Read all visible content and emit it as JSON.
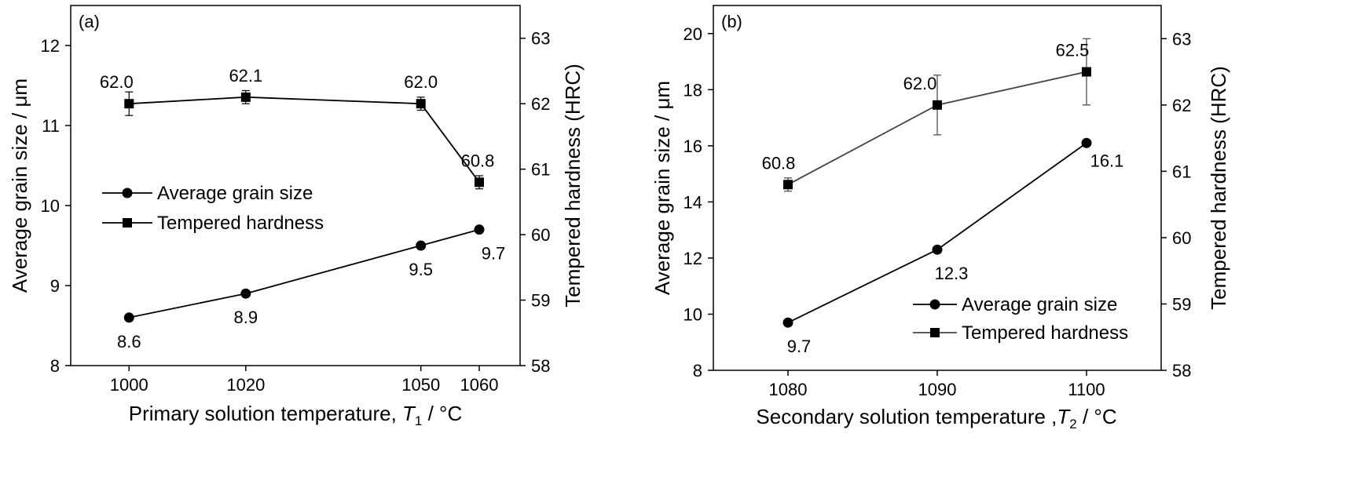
{
  "chart_data": [
    {
      "type": "line",
      "panel_label": "(a)",
      "xlabel_pre": "Primary solution temperature, ",
      "xlabel_var": "T",
      "xlabel_sub": "1",
      "xlabel_post": " / °C",
      "ylabel_left": "Average grain size / μm",
      "ylabel_right": "Tempered hardness (HRC)",
      "xlim": [
        990,
        1067
      ],
      "ylim_left": [
        8,
        12.5
      ],
      "ylim_right": [
        58,
        63.5
      ],
      "x_ticks": [
        1000,
        1020,
        1050,
        1060
      ],
      "x_tick_labels": [
        "1000",
        "1020",
        "1050",
        "1060"
      ],
      "y_left_ticks": [
        8,
        9,
        10,
        11,
        12
      ],
      "y_left_tick_labels": [
        "8",
        "9",
        "10",
        "11",
        "12"
      ],
      "y_right_ticks": [
        58,
        59,
        60,
        61,
        62,
        63
      ],
      "y_right_tick_labels": [
        "58",
        "59",
        "60",
        "61",
        "62",
        "63"
      ],
      "legend_position": "middle-left",
      "series": [
        {
          "name": "Average grain size",
          "axis": "left",
          "marker": "circle",
          "color": "#000000",
          "x": [
            1000,
            1020,
            1050,
            1060
          ],
          "values": [
            8.6,
            8.9,
            9.5,
            9.7
          ],
          "labels": [
            "8.6",
            "8.9",
            "9.5",
            "9.7"
          ]
        },
        {
          "name": "Tempered hardness",
          "axis": "right",
          "marker": "square",
          "color": "#000000",
          "x": [
            1000,
            1020,
            1050,
            1060
          ],
          "values": [
            62.0,
            62.1,
            62.0,
            60.8
          ],
          "errors": [
            0.18,
            0.1,
            0.1,
            0.1
          ],
          "labels": [
            "62.0",
            "62.1",
            "62.0",
            "60.8"
          ]
        }
      ]
    },
    {
      "type": "line",
      "panel_label": "(b)",
      "xlabel_pre": "Secondary solution temperature ,",
      "xlabel_var": "T",
      "xlabel_sub": "2",
      "xlabel_post": " / °C",
      "ylabel_left": "Average grain size / μm",
      "ylabel_right": "Tempered hardness (HRC)",
      "xlim": [
        1075,
        1105
      ],
      "ylim_left": [
        8,
        21
      ],
      "ylim_right": [
        58,
        63.5
      ],
      "x_ticks": [
        1080,
        1090,
        1100
      ],
      "x_tick_labels": [
        "1080",
        "1090",
        "1100"
      ],
      "y_left_ticks": [
        8,
        10,
        12,
        14,
        16,
        18,
        20
      ],
      "y_left_tick_labels": [
        "8",
        "10",
        "12",
        "14",
        "16",
        "18",
        "20"
      ],
      "y_right_ticks": [
        58,
        59,
        60,
        61,
        62,
        63
      ],
      "y_right_tick_labels": [
        "58",
        "59",
        "60",
        "61",
        "62",
        "63"
      ],
      "legend_position": "bottom-right",
      "series": [
        {
          "name": "Average grain size",
          "axis": "left",
          "marker": "circle",
          "color": "#000000",
          "x": [
            1080,
            1090,
            1100
          ],
          "values": [
            9.7,
            12.3,
            16.1
          ],
          "labels": [
            "9.7",
            "12.3",
            "16.1"
          ]
        },
        {
          "name": "Tempered hardness",
          "axis": "right",
          "marker": "square",
          "color": "#444444",
          "x": [
            1080,
            1090,
            1100
          ],
          "values": [
            60.8,
            62.0,
            62.5
          ],
          "errors": [
            0.1,
            0.45,
            0.5
          ],
          "labels": [
            "60.8",
            "62.0",
            "62.5"
          ]
        }
      ]
    }
  ]
}
